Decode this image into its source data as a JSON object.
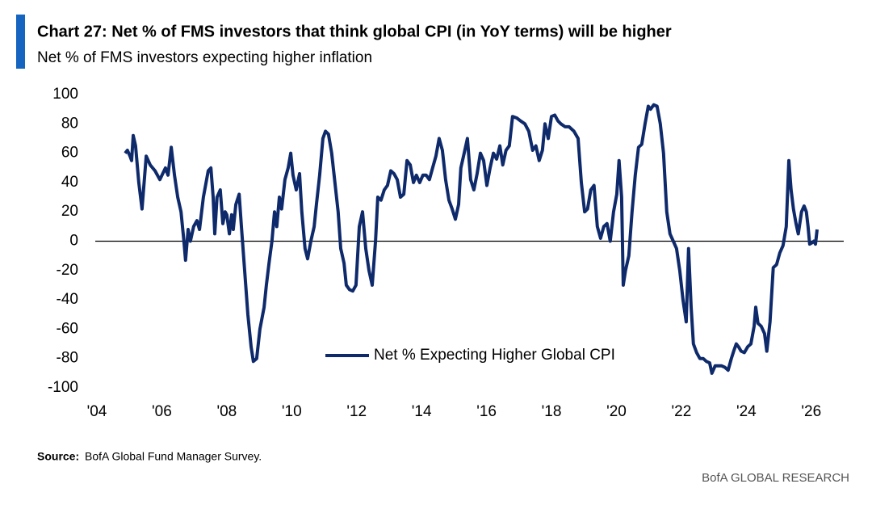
{
  "chart_data": {
    "type": "line",
    "title": "Chart 27: Net % of FMS investors that think global CPI (in YoY terms) will be higher",
    "subtitle": "Net % of FMS investors expecting higher inflation",
    "x": [
      2004.87,
      2004.94,
      2005.02,
      2005.07,
      2005.12,
      2005.19,
      2005.29,
      2005.39,
      2005.52,
      2005.64,
      2005.79,
      2005.94,
      2006.11,
      2006.19,
      2006.29,
      2006.39,
      2006.49,
      2006.59,
      2006.68,
      2006.73,
      2006.81,
      2006.88,
      2006.98,
      2007.08,
      2007.16,
      2007.28,
      2007.43,
      2007.51,
      2007.58,
      2007.63,
      2007.7,
      2007.8,
      2007.88,
      2007.95,
      2008.0,
      2008.08,
      2008.15,
      2008.2,
      2008.28,
      2008.38,
      2008.45,
      2008.55,
      2008.65,
      2008.75,
      2008.82,
      2008.92,
      2009.02,
      2009.15,
      2009.22,
      2009.3,
      2009.39,
      2009.47,
      2009.54,
      2009.62,
      2009.69,
      2009.79,
      2009.89,
      2009.97,
      2010.04,
      2010.14,
      2010.24,
      2010.31,
      2010.41,
      2010.49,
      2010.59,
      2010.69,
      2010.76,
      2010.86,
      2010.96,
      2011.04,
      2011.13,
      2011.23,
      2011.33,
      2011.43,
      2011.51,
      2011.61,
      2011.68,
      2011.78,
      2011.88,
      2011.98,
      2012.08,
      2012.18,
      2012.28,
      2012.38,
      2012.48,
      2012.58,
      2012.65,
      2012.75,
      2012.85,
      2012.95,
      2013.05,
      2013.15,
      2013.25,
      2013.35,
      2013.45,
      2013.55,
      2013.65,
      2013.75,
      2013.84,
      2013.94,
      2014.04,
      2014.14,
      2014.24,
      2014.34,
      2014.44,
      2014.54,
      2014.64,
      2014.74,
      2014.84,
      2014.94,
      2015.04,
      2015.14,
      2015.21,
      2015.31,
      2015.41,
      2015.51,
      2015.61,
      2015.71,
      2015.81,
      2015.91,
      2016.01,
      2016.11,
      2016.21,
      2016.31,
      2016.41,
      2016.5,
      2016.6,
      2016.7,
      2016.8,
      2016.93,
      2017.05,
      2017.18,
      2017.3,
      2017.42,
      2017.52,
      2017.62,
      2017.72,
      2017.8,
      2017.9,
      2018.0,
      2018.1,
      2018.2,
      2018.29,
      2018.42,
      2018.54,
      2018.69,
      2018.82,
      2018.92,
      2019.02,
      2019.11,
      2019.21,
      2019.31,
      2019.41,
      2019.51,
      2019.61,
      2019.71,
      2019.81,
      2019.91,
      2020.01,
      2020.08,
      2020.16,
      2020.21,
      2020.28,
      2020.38,
      2020.48,
      2020.58,
      2020.68,
      2020.78,
      2020.88,
      2020.98,
      2021.05,
      2021.15,
      2021.25,
      2021.35,
      2021.45,
      2021.55,
      2021.65,
      2021.75,
      2021.85,
      2021.95,
      2022.05,
      2022.15,
      2022.22,
      2022.3,
      2022.37,
      2022.47,
      2022.57,
      2022.67,
      2022.77,
      2022.87,
      2022.94,
      2023.04,
      2023.14,
      2023.24,
      2023.34,
      2023.44,
      2023.54,
      2023.61,
      2023.69,
      2023.76,
      2023.84,
      2023.94,
      2024.04,
      2024.14,
      2024.24,
      2024.29,
      2024.36,
      2024.46,
      2024.56,
      2024.63,
      2024.73,
      2024.83,
      2024.93,
      2025.03,
      2025.13,
      2025.23,
      2025.31,
      2025.38,
      2025.45,
      2025.53,
      2025.6,
      2025.7,
      2025.78,
      2025.85,
      2025.9,
      2025.95,
      2026.03,
      2026.08,
      2026.13,
      2026.18
    ],
    "series": [
      {
        "name": "Net % Expecting Higher Global CPI",
        "color": "#0e2a6b",
        "values": [
          60,
          62,
          58,
          55,
          72,
          65,
          40,
          22,
          58,
          52,
          48,
          42,
          50,
          45,
          64,
          45,
          30,
          20,
          0,
          -13,
          8,
          0,
          10,
          14,
          8,
          30,
          48,
          50,
          30,
          5,
          30,
          35,
          12,
          20,
          18,
          5,
          18,
          8,
          25,
          32,
          10,
          -20,
          -50,
          -72,
          -82,
          -80,
          -60,
          -45,
          -30,
          -15,
          0,
          20,
          10,
          30,
          22,
          42,
          50,
          60,
          45,
          35,
          46,
          20,
          -5,
          -12,
          0,
          10,
          25,
          45,
          70,
          75,
          73,
          60,
          40,
          20,
          -5,
          -15,
          -30,
          -33,
          -34,
          -30,
          10,
          20,
          -5,
          -20,
          -30,
          0,
          30,
          28,
          35,
          38,
          48,
          46,
          42,
          30,
          32,
          55,
          52,
          40,
          45,
          40,
          45,
          45,
          42,
          50,
          58,
          70,
          62,
          42,
          28,
          22,
          15,
          25,
          50,
          60,
          70,
          42,
          35,
          46,
          60,
          55,
          38,
          50,
          60,
          56,
          65,
          52,
          62,
          65,
          85,
          84,
          82,
          80,
          75,
          62,
          65,
          55,
          62,
          80,
          70,
          85,
          86,
          82,
          80,
          78,
          78,
          75,
          70,
          40,
          20,
          22,
          35,
          38,
          10,
          2,
          10,
          12,
          0,
          20,
          32,
          55,
          30,
          -30,
          -20,
          -10,
          20,
          45,
          64,
          66,
          80,
          92,
          90,
          93,
          92,
          80,
          60,
          20,
          5,
          0,
          -5,
          -20,
          -40,
          -55,
          -5,
          -45,
          -70,
          -76,
          -80,
          -80,
          -82,
          -83,
          -90,
          -85,
          -85,
          -85,
          -86,
          -88,
          -80,
          -75,
          -70,
          -72,
          -75,
          -76,
          -72,
          -70,
          -58,
          -45,
          -56,
          -58,
          -63,
          -75,
          -55,
          -18,
          -16,
          -8,
          -3,
          10,
          55,
          35,
          22,
          12,
          5,
          20,
          24,
          20,
          10,
          -2,
          -1,
          0,
          -2,
          8
        ]
      }
    ],
    "xlim": [
      2004,
      2027
    ],
    "xticks": [
      {
        "value": 2004,
        "label": "'04"
      },
      {
        "value": 2006,
        "label": "'06"
      },
      {
        "value": 2008,
        "label": "'08"
      },
      {
        "value": 2010,
        "label": "'10"
      },
      {
        "value": 2012,
        "label": "'12"
      },
      {
        "value": 2014,
        "label": "'14"
      },
      {
        "value": 2016,
        "label": "'16"
      },
      {
        "value": 2018,
        "label": "'18"
      },
      {
        "value": 2020,
        "label": "'20"
      },
      {
        "value": 2022,
        "label": "'22"
      },
      {
        "value": 2024,
        "label": "'24"
      },
      {
        "value": 2026,
        "label": "'26"
      }
    ],
    "ylim": [
      -100,
      100
    ],
    "yticks": [
      -100,
      -80,
      -60,
      -40,
      -20,
      0,
      20,
      40,
      60,
      80,
      100
    ],
    "zero_line": true,
    "legend": "bottom-center",
    "source_label": "Source:",
    "source": "BofA Global Fund Manager Survey.",
    "brand": "BofA GLOBAL RESEARCH"
  }
}
